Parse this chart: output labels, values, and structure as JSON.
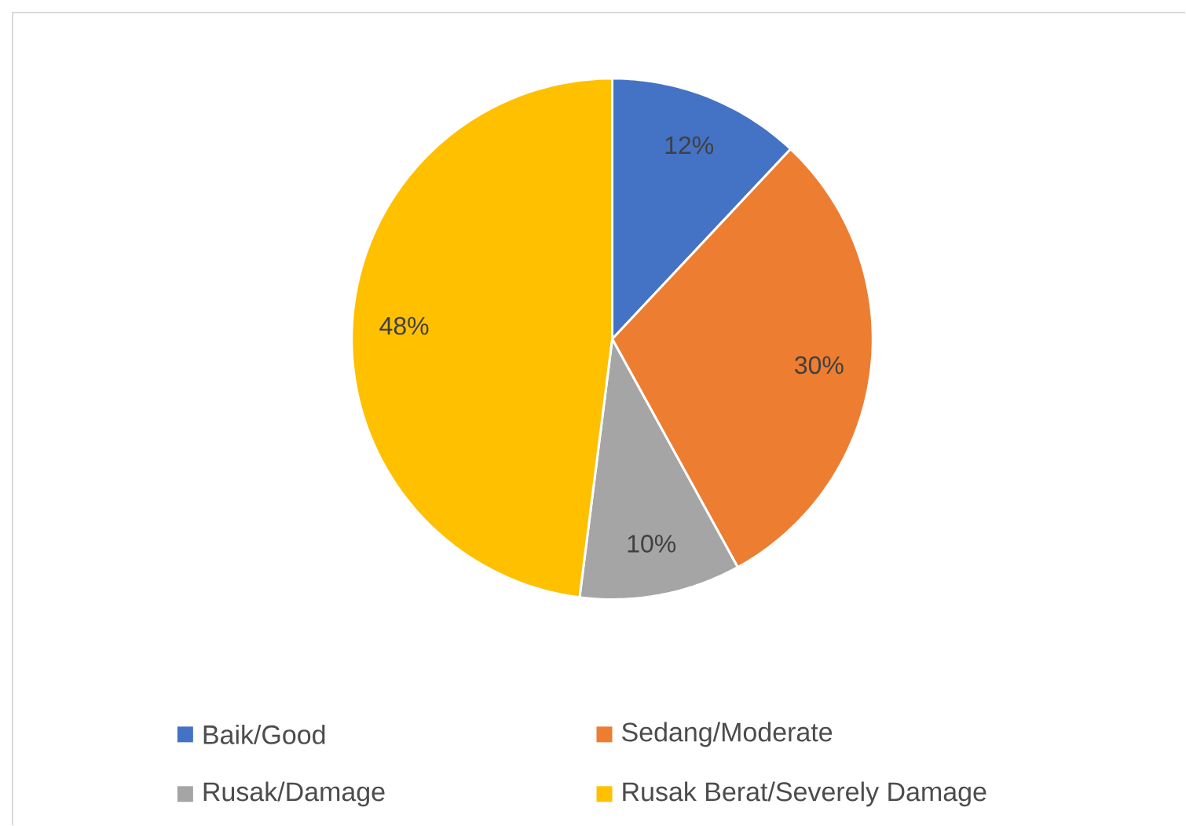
{
  "chart_data": {
    "type": "pie",
    "categories": [
      "Baik/Good",
      "Sedang/Moderate",
      "Rusak/Damage",
      "Rusak Berat/Severely Damage"
    ],
    "values": [
      12,
      30,
      10,
      48
    ],
    "colors": [
      "#4472c4",
      "#ed7d31",
      "#a5a5a5",
      "#ffc000"
    ],
    "value_labels": [
      "12%",
      "30%",
      "10%",
      "48%"
    ],
    "legend": "bottom"
  }
}
